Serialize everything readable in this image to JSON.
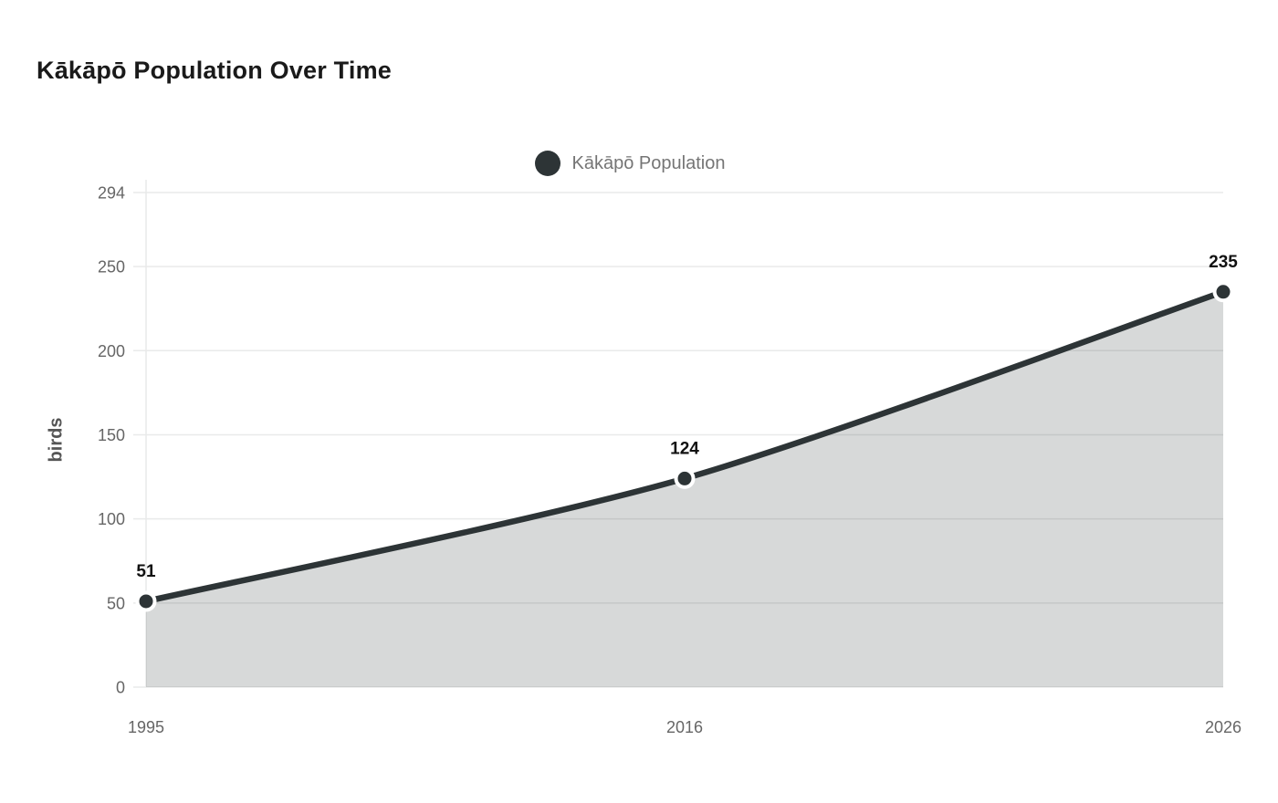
{
  "title": "Kākāpō Population Over Time",
  "legend": {
    "label": "Kākāpō Population"
  },
  "chart_data": {
    "type": "area",
    "title": "Kākāpō Population Over Time",
    "categories": [
      "1995",
      "2016",
      "2026"
    ],
    "series": [
      {
        "name": "Kākāpō Population",
        "values": [
          51,
          124,
          235
        ]
      }
    ],
    "point_labels": [
      "51",
      "124",
      "235"
    ],
    "xlabel": "",
    "ylabel": "birds",
    "yticks": [
      0,
      50,
      100,
      150,
      200,
      250,
      294
    ],
    "ylim": [
      0,
      294
    ],
    "grid": true,
    "legend_position": "top-center",
    "colors": {
      "line": "#2d3436",
      "point_fill": "#2d3436",
      "point_border": "#ffffff",
      "area_fill": "#2d3436",
      "area_opacity": 0.19,
      "grid_line": "#e9eaea",
      "tick_text": "#666666",
      "title_text": "#1a1a1a",
      "legend_text": "#757575",
      "axis_title_text": "#555555",
      "background": "#ffffff"
    }
  }
}
